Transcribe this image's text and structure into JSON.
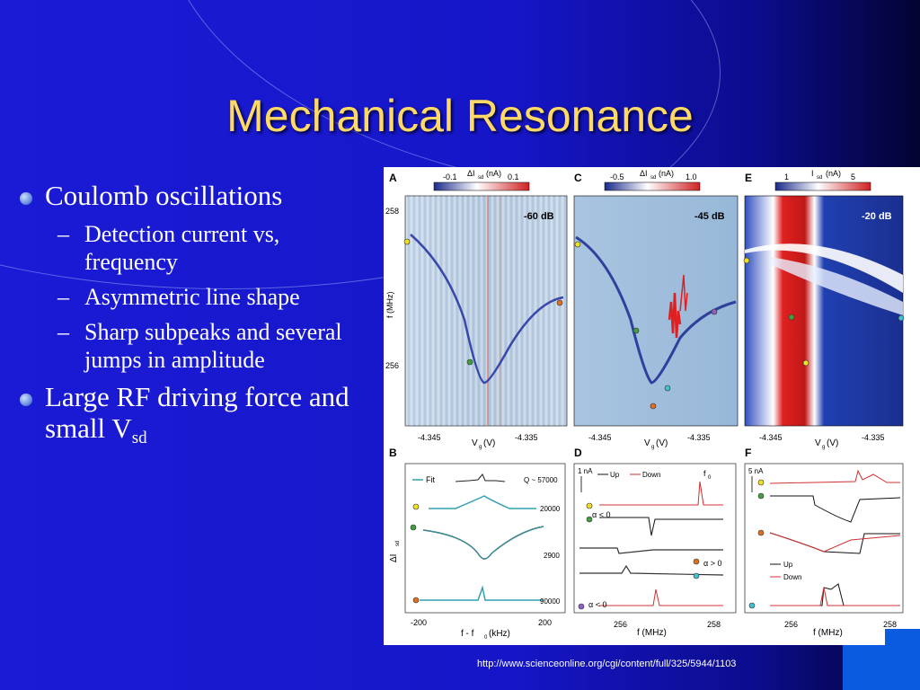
{
  "slide": {
    "title": "Mechanical Resonance",
    "bullets": [
      {
        "text": "Coulomb oscillations",
        "sub": [
          {
            "text": "Detection current vs, frequency"
          },
          {
            "text": "Asymmetric line shape"
          },
          {
            "text": "Sharp subpeaks and several jumps in amplitude"
          }
        ]
      },
      {
        "text": "Large RF driving force and small V",
        "subscript": "sd"
      }
    ],
    "footer_url": "http://www.scienceonline.org/cgi/content/full/325/5944/1103",
    "colors": {
      "background": "#1616c8",
      "title": "#ffd966",
      "text": "#ffffff",
      "corner": "#0a5be0"
    }
  },
  "figure": {
    "panels": {
      "A": {
        "letter": "A",
        "db": "-60 dB",
        "cb_ticks": [
          "-0.1",
          "0.1"
        ],
        "cb_label": "ΔI",
        "cb_sub": "sd",
        "cb_unit": "(nA)"
      },
      "C": {
        "letter": "C",
        "db": "-45 dB",
        "cb_ticks": [
          "-0.5",
          "1.0"
        ],
        "cb_label": "ΔI",
        "cb_sub": "sd",
        "cb_unit": "(nA)"
      },
      "E": {
        "letter": "E",
        "db": "-20 dB",
        "cb_ticks": [
          "1",
          "5"
        ],
        "cb_label": "I",
        "cb_sub": "sd",
        "cb_unit": "(nA)"
      },
      "B": {
        "letter": "B",
        "fit": "Fit",
        "q": [
          "Q ~ 57000",
          "20000",
          "2900",
          "90000"
        ],
        "x_ticks": [
          "-200",
          "200"
        ],
        "xlabel": "f - f",
        "xlabel_sub": "0",
        "xlabel_unit": "(kHz)",
        "ylabel": "ΔI",
        "ylabel_sub": "sd"
      },
      "D": {
        "letter": "D",
        "scale": "1 nA",
        "up": "Up",
        "down": "Down",
        "f0": "f",
        "f0_sub": "0",
        "alpha": [
          "α < 0",
          "α > 0",
          "α < 0"
        ],
        "x_ticks": [
          "256",
          "258"
        ],
        "xlabel": "f (MHz)"
      },
      "F": {
        "letter": "F",
        "scale": "5 nA",
        "up": "Up",
        "down": "Down",
        "x_ticks": [
          "256",
          "258"
        ],
        "xlabel": "f (MHz)"
      }
    },
    "top_x_ticks": [
      "-4.345",
      "-4.335"
    ],
    "top_xlabel": "V",
    "top_xlabel_sub": "g",
    "top_xlabel_unit": "(V)",
    "ylabel": "f (MHz)",
    "y_ticks": [
      "258",
      "256"
    ]
  }
}
